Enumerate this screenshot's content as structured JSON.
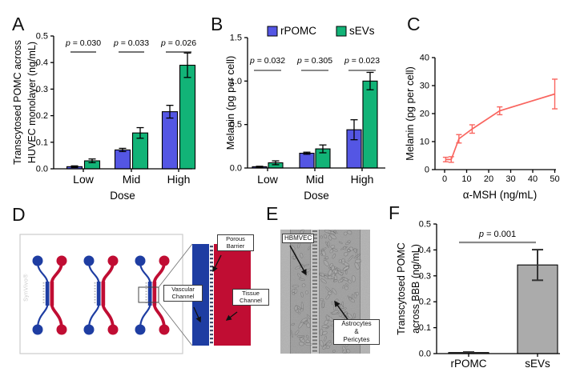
{
  "panels": {
    "a": "A",
    "b": "B",
    "c": "C",
    "d": "D",
    "e": "E",
    "f": "F"
  },
  "chart_data": [
    {
      "id": "chartA",
      "type": "bar",
      "panel": "A",
      "ylabel_lines": [
        "Transcytosed POMC across",
        "HUVEC monolayer (ng/mL)"
      ],
      "xlabel": "Dose",
      "categories": [
        "Low",
        "Mid",
        "High"
      ],
      "ylim": [
        0,
        0.5
      ],
      "yticks": [
        0,
        0.1,
        0.2,
        0.3,
        0.4,
        0.5
      ],
      "ytick_decimals": 1,
      "series": [
        {
          "name": "rPOMC",
          "color": "#5456e4",
          "values": [
            0.008,
            0.071,
            0.215
          ],
          "errors": [
            0.003,
            0.006,
            0.024
          ]
        },
        {
          "name": "sEVs",
          "color": "#12b377",
          "values": [
            0.03,
            0.135,
            0.39
          ],
          "errors": [
            0.007,
            0.02,
            0.046
          ]
        }
      ],
      "pvalues": [
        "p = 0.030",
        "p = 0.033",
        "p = 0.026"
      ]
    },
    {
      "id": "chartB",
      "type": "bar",
      "panel": "B",
      "ylabel_lines": [
        "Melanin (pg per cell)"
      ],
      "xlabel": "Dose",
      "categories": [
        "Low",
        "Mid",
        "High"
      ],
      "ylim": [
        0,
        1.5
      ],
      "yticks": [
        0,
        0.5,
        1.0,
        1.5
      ],
      "ytick_decimals": 1,
      "legend": true,
      "series": [
        {
          "name": "rPOMC",
          "color": "#5456e4",
          "values": [
            0.015,
            0.17,
            0.44
          ],
          "errors": [
            0.005,
            0.012,
            0.115
          ]
        },
        {
          "name": "sEVs",
          "color": "#12b377",
          "values": [
            0.06,
            0.22,
            1.0
          ],
          "errors": [
            0.022,
            0.045,
            0.1
          ]
        }
      ],
      "pvalues": [
        "p = 0.032",
        "p = 0.305",
        "p = 0.023"
      ]
    },
    {
      "id": "chartC",
      "type": "line",
      "panel": "C",
      "ylabel_lines": [
        "Melanin (pg per cell)"
      ],
      "xlabel": "α-MSH (ng/mL)",
      "color": "#f9655f",
      "x": [
        0.5,
        3,
        6.5,
        12.5,
        25,
        50
      ],
      "y": [
        3.6,
        3.6,
        11,
        14.5,
        21,
        27
      ],
      "errors": [
        0.8,
        1.0,
        1.5,
        1.5,
        1.4,
        5.3
      ],
      "xlim": [
        0,
        50
      ],
      "xticks": [
        0,
        10,
        20,
        30,
        40,
        50
      ],
      "ylim": [
        0,
        40
      ],
      "yticks": [
        0,
        10,
        20,
        30,
        40
      ],
      "ytick_decimals": 0
    },
    {
      "id": "chartF",
      "type": "bar",
      "panel": "F",
      "ylabel_lines": [
        "Transcytosed POMC",
        "across BBB (ng/mL)"
      ],
      "categories": [
        "rPOMC",
        "sEVs"
      ],
      "ylim": [
        0,
        0.5
      ],
      "yticks": [
        0,
        0.1,
        0.2,
        0.3,
        0.4,
        0.5
      ],
      "ytick_decimals": 1,
      "series": [
        {
          "color": "#ababab",
          "values": [
            0.004,
            0.342
          ],
          "errors": [
            0.002,
            0.059
          ]
        }
      ],
      "p_value": "p = 0.001"
    }
  ],
  "panel_d": {
    "watermark": "SynVivo®",
    "labels": {
      "porous": [
        "Porous",
        "Barrier"
      ],
      "vascular": [
        "Vascular",
        "Channel"
      ],
      "tissue": [
        "Tissue",
        "Channel"
      ]
    },
    "colors": {
      "vascular_blue": "#1e3da2",
      "tissue_red": "#c00d33"
    }
  },
  "panel_e": {
    "labels": {
      "endothelial": "HBMVEC",
      "tissue": [
        "Astrocytes",
        "&",
        "Pericytes"
      ]
    }
  }
}
